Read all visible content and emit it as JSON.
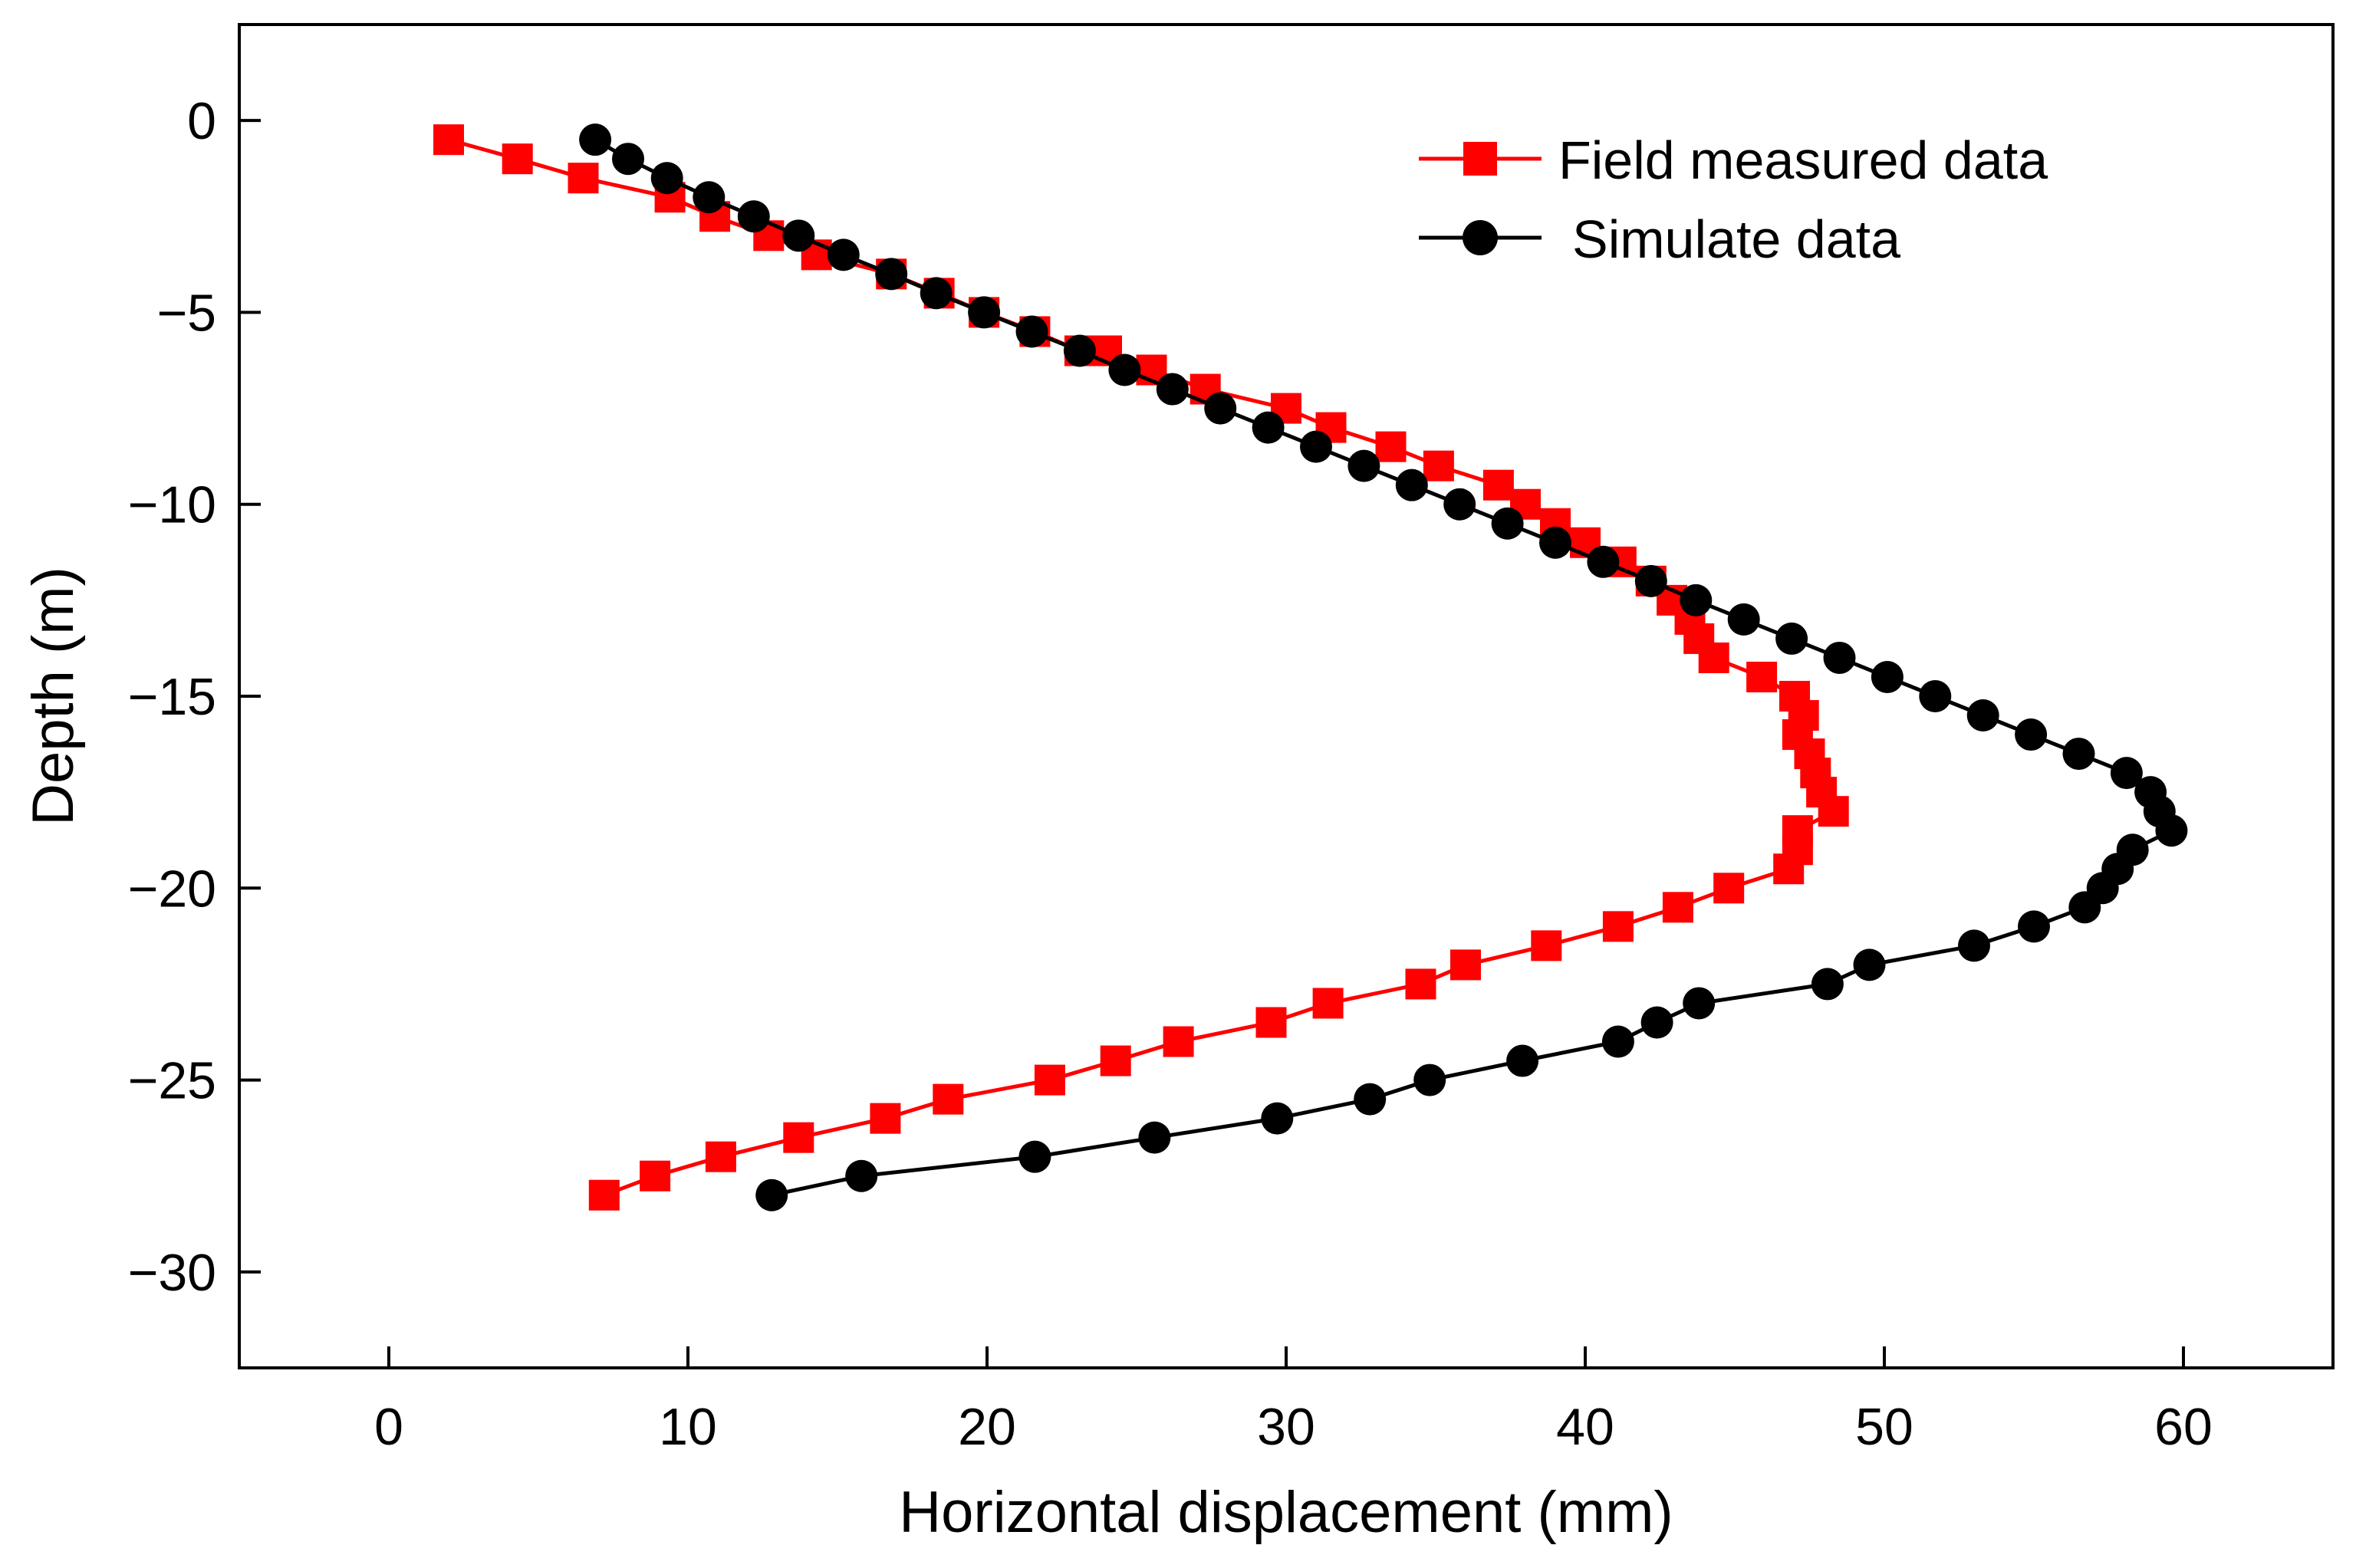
{
  "chart_data": {
    "type": "line",
    "title": "",
    "xlabel": "Horizontal displacement (mm)",
    "ylabel": "Depth (m)",
    "xlim": [
      -5,
      65
    ],
    "ylim": [
      -32.5,
      2.5
    ],
    "xticks": [
      0,
      10,
      20,
      30,
      40,
      50,
      60
    ],
    "yticks": [
      0,
      -5,
      -10,
      -15,
      -20,
      -25,
      -30
    ],
    "xtick_labels": [
      "0",
      "10",
      "20",
      "30",
      "40",
      "50",
      "60"
    ],
    "ytick_labels": [
      "0",
      "−5",
      "−10",
      "−15",
      "−20",
      "−25",
      "−30"
    ],
    "grid": false,
    "legend_position": "top-right",
    "series": [
      {
        "name": "Field measured data",
        "color": "#ff0000",
        "marker": "square",
        "x": [
          2.0,
          4.3,
          6.5,
          9.4,
          10.9,
          12.7,
          14.3,
          16.8,
          18.4,
          19.9,
          21.6,
          23.1,
          24.0,
          25.5,
          27.3,
          30.0,
          31.5,
          33.5,
          35.1,
          37.1,
          38.0,
          39.0,
          40.0,
          41.2,
          42.2,
          42.9,
          43.5,
          43.8,
          44.3,
          45.9,
          47.0,
          47.3,
          47.1,
          47.5,
          47.7,
          47.9,
          48.3,
          47.1,
          47.1,
          46.8,
          44.8,
          43.1,
          41.1,
          38.7,
          36.0,
          34.5,
          31.4,
          29.5,
          26.4,
          24.3,
          22.1,
          18.7,
          16.6,
          13.7,
          11.1,
          8.9,
          7.2
        ],
        "y": [
          -0.5,
          -1.0,
          -1.5,
          -2.0,
          -2.5,
          -3.0,
          -3.5,
          -4.0,
          -4.5,
          -5.0,
          -5.5,
          -6.0,
          -6.0,
          -6.5,
          -7.0,
          -7.5,
          -8.0,
          -8.5,
          -9.0,
          -9.5,
          -10.0,
          -10.5,
          -11.0,
          -11.5,
          -12.0,
          -12.5,
          -13.0,
          -13.5,
          -14.0,
          -14.5,
          -15.0,
          -15.5,
          -16.0,
          -16.5,
          -17.0,
          -17.5,
          -18.0,
          -18.5,
          -19.0,
          -19.5,
          -20.0,
          -20.5,
          -21.0,
          -21.5,
          -22.0,
          -22.5,
          -23.0,
          -23.5,
          -24.0,
          -24.5,
          -25.0,
          -25.5,
          -26.0,
          -26.5,
          -27.0,
          -27.5,
          -28.0
        ]
      },
      {
        "name": "Simulate data",
        "color": "#000000",
        "marker": "circle",
        "x": [
          6.9,
          8.0,
          9.3,
          10.7,
          12.2,
          13.7,
          15.2,
          16.8,
          18.3,
          19.9,
          21.5,
          23.1,
          24.6,
          26.2,
          27.8,
          29.4,
          31.0,
          32.6,
          34.2,
          35.8,
          37.4,
          39.0,
          40.6,
          42.2,
          43.7,
          45.3,
          46.9,
          48.5,
          50.1,
          51.7,
          53.3,
          54.9,
          56.5,
          58.1,
          58.9,
          59.2,
          59.6,
          58.3,
          57.8,
          57.3,
          56.7,
          55.0,
          53.0,
          49.5,
          48.1,
          43.8,
          42.4,
          41.1,
          37.9,
          34.8,
          32.8,
          29.7,
          25.6,
          21.6,
          15.8,
          12.8
        ],
        "y": [
          -0.5,
          -1.0,
          -1.5,
          -2.0,
          -2.5,
          -3.0,
          -3.5,
          -4.0,
          -4.5,
          -5.0,
          -5.5,
          -6.0,
          -6.5,
          -7.0,
          -7.5,
          -8.0,
          -8.5,
          -9.0,
          -9.5,
          -10.0,
          -10.5,
          -11.0,
          -11.5,
          -12.0,
          -12.5,
          -13.0,
          -13.5,
          -14.0,
          -14.5,
          -15.0,
          -15.5,
          -16.0,
          -16.5,
          -17.0,
          -17.5,
          -18.0,
          -18.5,
          -19.0,
          -19.5,
          -20.0,
          -20.5,
          -21.0,
          -21.5,
          -22.0,
          -22.5,
          -23.0,
          -23.5,
          -24.0,
          -24.5,
          -25.0,
          -25.5,
          -26.0,
          -26.5,
          -27.0,
          -27.5,
          -28.0
        ]
      }
    ]
  }
}
